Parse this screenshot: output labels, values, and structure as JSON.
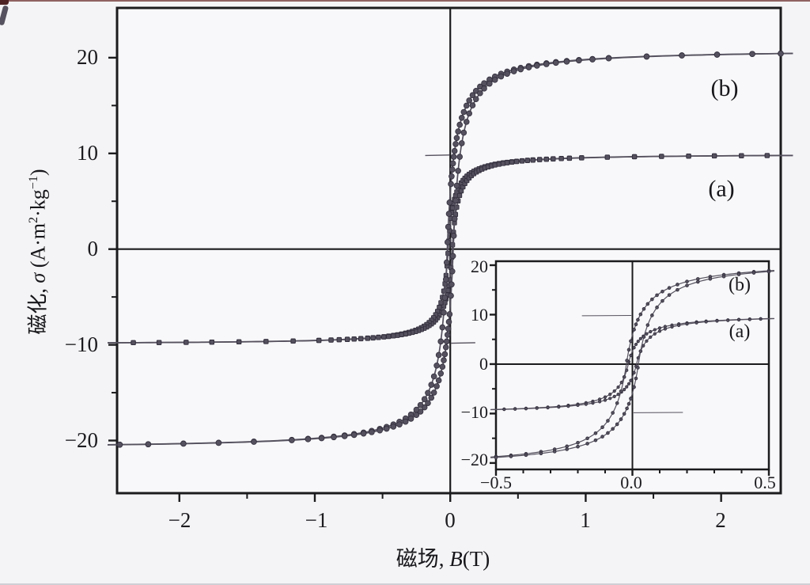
{
  "chart_data": {
    "type": "line",
    "title": "",
    "xlabel": {
      "pre": "磁场, ",
      "var": "B",
      "post": "(T)"
    },
    "ylabel": {
      "pre": "磁化, ",
      "var": "σ",
      "mid": " (A·m",
      "sup1": "2",
      "dot": "·kg",
      "sup2": "−1",
      "post": ")"
    },
    "main_axes": {
      "xlim": [
        -2.46,
        2.44
      ],
      "ylim": [
        -25.5,
        25.2
      ],
      "x_tick_values": [
        -2,
        -1,
        0,
        1,
        2
      ],
      "x_tick_labels": [
        "−2",
        "−1",
        "0",
        "1",
        "2"
      ],
      "x_minor_tick_values": [
        -1.5,
        -0.5,
        0.5,
        1.5
      ],
      "y_tick_values": [
        20,
        10,
        0,
        -10,
        -20
      ],
      "y_tick_labels": [
        "20",
        "10",
        "0",
        "−10",
        "−20"
      ],
      "y_minor_tick_values": [
        15,
        5,
        -5,
        -15
      ],
      "grid": false,
      "zero_axes_drawn": true
    },
    "inset_axes": {
      "xlim": [
        -0.5,
        0.5
      ],
      "ylim": [
        -21.3,
        20.8
      ],
      "x_tick_values": [
        -0.5,
        0.0,
        0.5
      ],
      "x_tick_labels": [
        "−0.5",
        "0.0",
        "0.5"
      ],
      "x_minor_step": 0.1,
      "y_tick_values": [
        20,
        10,
        0,
        -10,
        -20
      ],
      "y_tick_labels": [
        "20",
        "10",
        "0",
        "−10",
        "−20"
      ],
      "y_minor_tick_values": [
        15,
        5,
        -5,
        -15
      ],
      "grid": false,
      "zero_axes_drawn": true
    },
    "annotations": {
      "main_b": "(b)",
      "main_a": "(a)",
      "inset_b": "(b)",
      "inset_a": "(a)"
    },
    "series": [
      {
        "name": "(a)",
        "marker": "square",
        "color": "#56515e",
        "marker_edge": "#332f3d",
        "saturation_sigma": 9.95,
        "shape_c": 0.042,
        "coercive_field_hc": 0.015,
        "remanence_stub_x": 0.185,
        "key_points": [
          [
            0.1,
            7.0
          ],
          [
            0.2,
            8.2
          ],
          [
            0.5,
            9.2
          ],
          [
            1.0,
            9.55
          ],
          [
            2.44,
            9.78
          ],
          [
            -0.5,
            -9.2
          ],
          [
            -2.44,
            -9.78
          ]
        ],
        "marker_x": [
          0.005,
          0.011,
          0.017,
          0.024,
          0.031,
          0.039,
          0.048,
          0.058,
          0.069,
          0.081,
          0.094,
          0.108,
          0.123,
          0.139,
          0.156,
          0.174,
          0.193,
          0.213,
          0.234,
          0.256,
          0.28,
          0.305,
          0.33,
          0.36,
          0.39,
          0.42,
          0.455,
          0.49,
          0.53,
          0.57,
          0.61,
          0.66,
          0.71,
          0.76,
          0.82,
          0.88,
          0.97,
          1.16,
          1.36,
          1.56,
          1.76,
          1.95,
          2.15,
          2.34
        ],
        "marker_x_inset": [
          0.006,
          0.013,
          0.021,
          0.03,
          0.04,
          0.052,
          0.066,
          0.082,
          0.1,
          0.12,
          0.145,
          0.17,
          0.2,
          0.235,
          0.27,
          0.31,
          0.35,
          0.39,
          0.43,
          0.47
        ]
      },
      {
        "name": "(b)",
        "marker": "circle",
        "color": "#55515e",
        "marker_edge": "#332f3d",
        "saturation_sigma": 20.9,
        "shape_c": 0.056,
        "coercive_field_hc": 0.022,
        "remanence_stub_x": 0,
        "key_points": [
          [
            0.1,
            13.4
          ],
          [
            0.2,
            16.3
          ],
          [
            0.5,
            18.8
          ],
          [
            1.0,
            19.8
          ],
          [
            2.44,
            20.4
          ],
          [
            -0.5,
            -18.8
          ],
          [
            -2.44,
            -20.4
          ]
        ],
        "marker_x": [
          0.005,
          0.01,
          0.015,
          0.02,
          0.026,
          0.032,
          0.04,
          0.048,
          0.058,
          0.07,
          0.085,
          0.1,
          0.12,
          0.14,
          0.165,
          0.19,
          0.22,
          0.25,
          0.29,
          0.33,
          0.375,
          0.42,
          0.47,
          0.52,
          0.58,
          0.64,
          0.71,
          0.78,
          0.86,
          0.95,
          1.05,
          1.17,
          1.45,
          1.71,
          1.97,
          2.23,
          2.44
        ],
        "marker_x_inset": [
          0.006,
          0.013,
          0.02,
          0.03,
          0.042,
          0.056,
          0.072,
          0.09,
          0.11,
          0.135,
          0.165,
          0.2,
          0.24,
          0.285,
          0.335,
          0.39,
          0.445,
          0.5
        ]
      }
    ],
    "colors": {
      "axis": "#1b1b1d",
      "plot_bg": "#f8f8fa",
      "page_bg": "#f4f4f6"
    }
  }
}
